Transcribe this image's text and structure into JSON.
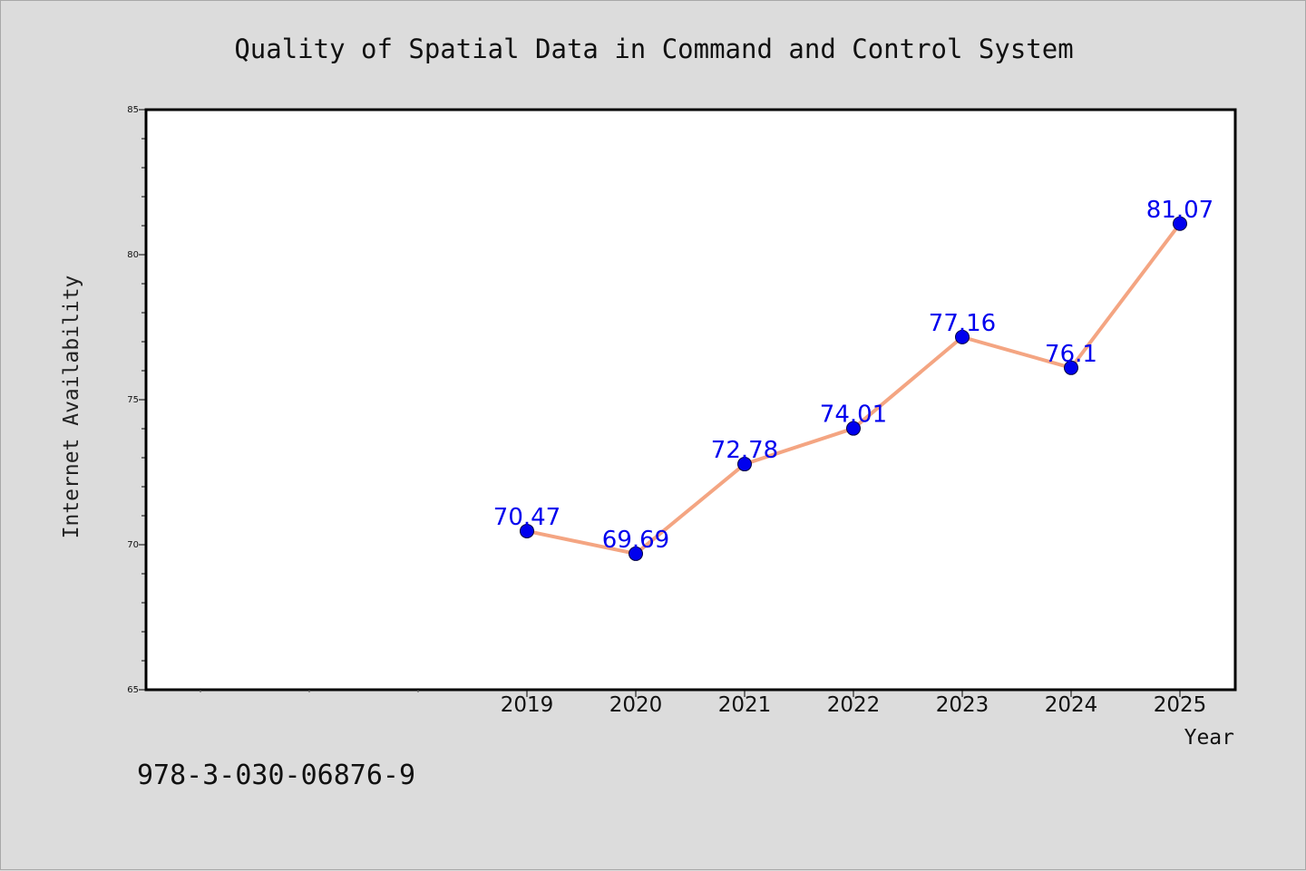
{
  "chart_data": {
    "type": "line",
    "title": "Quality of Spatial Data in Command and Control System",
    "xlabel": "Year",
    "ylabel": "Internet Availability",
    "categories": [
      "2019",
      "2020",
      "2021",
      "2022",
      "2023",
      "2024",
      "2025"
    ],
    "series": [
      {
        "values": [
          70.47,
          69.69,
          72.78,
          74.01,
          77.16,
          76.1,
          81.07
        ]
      }
    ],
    "data_labels": [
      "70.47",
      "69.69",
      "72.78",
      "74.01",
      "77.16",
      "76.1",
      "81.07"
    ],
    "ylim": [
      65,
      85
    ],
    "yticks": [
      65,
      70,
      75,
      80,
      85
    ],
    "grid": false,
    "legend": "none",
    "colors": {
      "line": "#f4a582",
      "marker": "#0000ee",
      "label": "#0000ee",
      "background": "#dcdcdc",
      "plot_area": "#ffffff"
    }
  },
  "footer": {
    "isbn": "978-3-030-06876-9"
  }
}
